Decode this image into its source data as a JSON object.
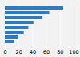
{
  "chart_data": {
    "type": "bar",
    "orientation": "horizontal",
    "categories": [
      null,
      null,
      null,
      null,
      null,
      null,
      null,
      null
    ],
    "values": [
      84.9,
      64.5,
      54.8,
      41.6,
      34.2,
      27.5,
      19.8,
      12.8
    ],
    "color": "#2f7bbf",
    "xlim": [
      0,
      100
    ],
    "xticks": [
      0,
      20,
      40,
      60,
      80,
      100
    ],
    "grid": true,
    "tick_labels": "x"
  }
}
